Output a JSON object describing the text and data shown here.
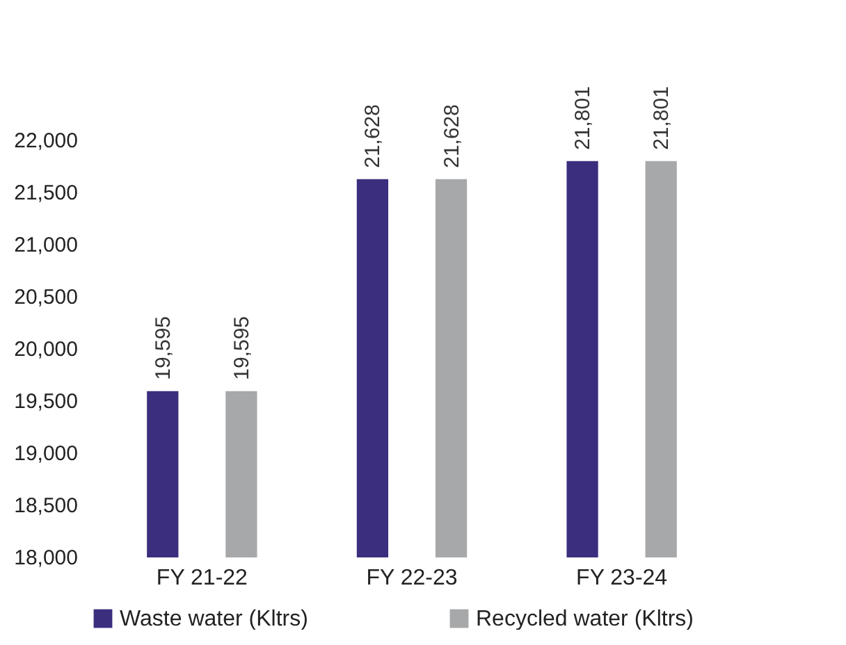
{
  "chart_data": {
    "type": "bar",
    "categories": [
      "FY 21-22",
      "FY 22-23",
      "FY 23-24"
    ],
    "series": [
      {
        "name": "Waste water (Kltrs)",
        "color": "#3b2e7e",
        "values": [
          19595,
          21628,
          21801
        ],
        "value_labels": [
          "19,595",
          "21,628",
          "21,801"
        ]
      },
      {
        "name": "Recycled water (Kltrs)",
        "color": "#a7a8aa",
        "values": [
          19595,
          21628,
          21801
        ],
        "value_labels": [
          "19,595",
          "21,628",
          "21,801"
        ]
      }
    ],
    "ylim": [
      18000,
      22000
    ],
    "yticks": [
      {
        "value": 18000,
        "label": "18,000"
      },
      {
        "value": 18500,
        "label": "18,500"
      },
      {
        "value": 19000,
        "label": "19,000"
      },
      {
        "value": 19500,
        "label": "19,500"
      },
      {
        "value": 20000,
        "label": "20,000"
      },
      {
        "value": 20500,
        "label": "20,500"
      },
      {
        "value": 21000,
        "label": "21,000"
      },
      {
        "value": 21500,
        "label": "21,500"
      },
      {
        "value": 22000,
        "label": "22,000"
      }
    ],
    "legend": "bottom",
    "grid": false
  }
}
